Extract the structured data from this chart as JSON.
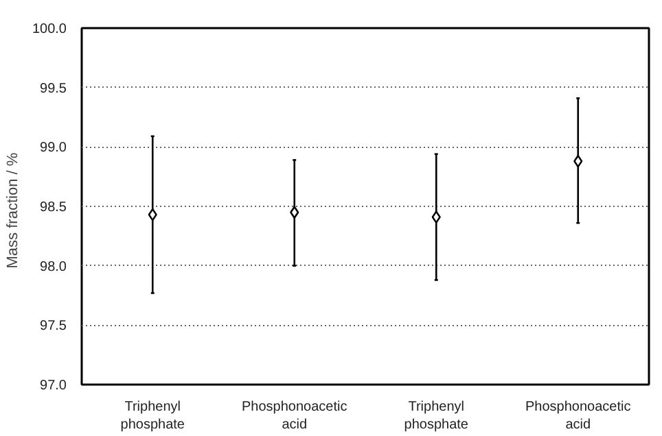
{
  "chart_data": {
    "type": "scatter",
    "ylabel": "Mass fraction  /  %",
    "categories": [
      "Triphenyl phosphate",
      "Phosphonoacetic acid",
      "Triphenyl phosphate",
      "Phosphonoacetic acid"
    ],
    "series": [
      {
        "color": "#000000",
        "values": [
          98.43,
          98.45,
          98.41,
          98.88
        ],
        "errors": [
          [
            97.77,
            99.09
          ],
          [
            98.0,
            98.89
          ],
          [
            97.88,
            98.94
          ],
          [
            98.36,
            99.41
          ]
        ]
      }
    ],
    "ylim": [
      97.0,
      100.0
    ],
    "yticks": [
      {
        "value": 97.0,
        "label": "97.0"
      },
      {
        "value": 97.5,
        "label": "97.5"
      },
      {
        "value": 98.0,
        "label": "98.0"
      },
      {
        "value": 98.5,
        "label": "98.5"
      },
      {
        "value": 99.0,
        "label": "99.0"
      },
      {
        "value": 99.5,
        "label": "99.5"
      },
      {
        "value": 100.0,
        "label": "100.0"
      }
    ],
    "grid": "y",
    "marker": "diamond"
  }
}
